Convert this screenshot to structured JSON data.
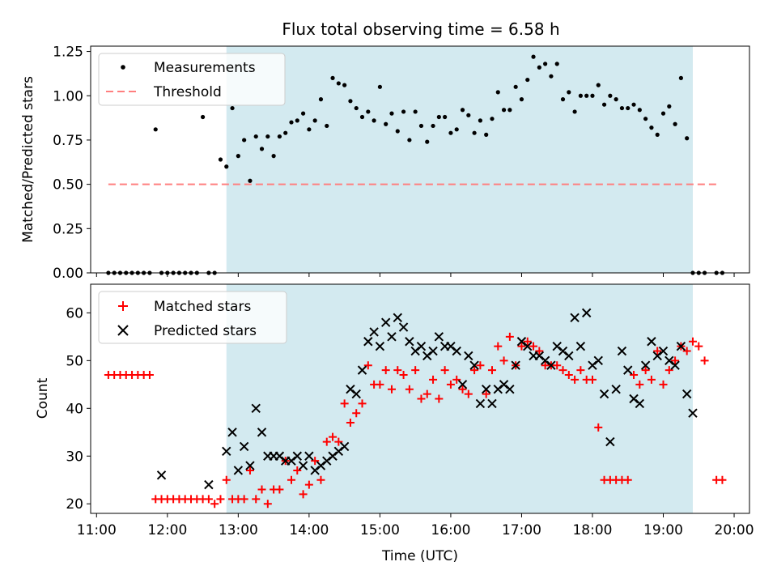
{
  "figure": {
    "title": "Flux total observing time = 6.58 h",
    "xlabel": "Time (UTC)",
    "x_tick_labels": [
      "11:00",
      "12:00",
      "13:00",
      "14:00",
      "15:00",
      "16:00",
      "17:00",
      "18:00",
      "19:00",
      "20:00"
    ],
    "shade_color": "#d3eaf0"
  },
  "chart_data": [
    {
      "type": "scatter",
      "ylabel": "Matched/Predicted stars",
      "ylim": [
        0,
        1.28
      ],
      "xlim": [
        "10:55",
        "20:13"
      ],
      "y_ticks": [
        0,
        0.25,
        0.5,
        0.75,
        1.0,
        1.25
      ],
      "y_tick_labels": [
        "0.00",
        "0.25",
        "0.50",
        "0.75",
        "1.00",
        "1.25"
      ],
      "legend": {
        "position": "top-left",
        "entries": [
          "Measurements",
          "Threshold"
        ]
      },
      "shaded_interval": [
        "12:50",
        "19:25"
      ],
      "threshold": {
        "name": "Threshold",
        "value": 0.5,
        "x_range": [
          "11:10",
          "19:48"
        ],
        "color": "#ff7f7f"
      },
      "series": [
        {
          "name": "Measurements",
          "color": "#000000",
          "x": [
            "11:10",
            "11:15",
            "11:20",
            "11:25",
            "11:30",
            "11:35",
            "11:40",
            "11:45",
            "11:50",
            "11:55",
            "12:00",
            "12:05",
            "12:10",
            "12:15",
            "12:20",
            "12:25",
            "12:30",
            "12:35",
            "12:40",
            "12:45",
            "12:50",
            "12:55",
            "13:00",
            "13:05",
            "13:10",
            "13:15",
            "13:20",
            "13:25",
            "13:30",
            "13:35",
            "13:40",
            "13:45",
            "13:50",
            "13:55",
            "14:00",
            "14:05",
            "14:10",
            "14:15",
            "14:20",
            "14:25",
            "14:30",
            "14:35",
            "14:40",
            "14:45",
            "14:50",
            "14:55",
            "15:00",
            "15:05",
            "15:10",
            "15:15",
            "15:20",
            "15:25",
            "15:30",
            "15:35",
            "15:40",
            "15:45",
            "15:50",
            "15:55",
            "16:00",
            "16:05",
            "16:10",
            "16:15",
            "16:20",
            "16:25",
            "16:30",
            "16:35",
            "16:40",
            "16:45",
            "16:50",
            "16:55",
            "17:00",
            "17:05",
            "17:10",
            "17:15",
            "17:20",
            "17:25",
            "17:30",
            "17:35",
            "17:40",
            "17:45",
            "17:50",
            "17:55",
            "18:00",
            "18:05",
            "18:10",
            "18:15",
            "18:20",
            "18:25",
            "18:30",
            "18:35",
            "18:40",
            "18:45",
            "18:50",
            "18:55",
            "19:00",
            "19:05",
            "19:10",
            "19:15",
            "19:20",
            "19:25",
            "19:30",
            "19:35",
            "19:45",
            "19:50"
          ],
          "values": [
            0,
            0,
            0,
            0,
            0,
            0,
            0,
            0,
            0.81,
            0,
            0,
            0,
            0,
            0,
            0,
            0,
            0.88,
            0,
            0,
            0.64,
            0.6,
            0.93,
            0.66,
            0.75,
            0.52,
            0.77,
            0.7,
            0.77,
            0.66,
            0.77,
            0.79,
            0.85,
            0.86,
            0.9,
            0.81,
            0.86,
            0.98,
            0.83,
            1.1,
            1.07,
            1.06,
            0.97,
            0.93,
            0.88,
            0.91,
            0.86,
            1.05,
            0.84,
            0.9,
            0.8,
            0.91,
            0.75,
            0.91,
            0.83,
            0.74,
            0.83,
            0.88,
            0.88,
            0.79,
            0.81,
            0.92,
            0.89,
            0.79,
            0.86,
            0.78,
            0.87,
            1.02,
            0.92,
            0.92,
            1.05,
            0.98,
            1.09,
            1.22,
            1.16,
            1.18,
            1.11,
            1.18,
            0.98,
            1.02,
            0.91,
            1.0,
            1.0,
            1.0,
            1.06,
            0.95,
            1.0,
            0.98,
            0.93,
            0.93,
            0.95,
            0.92,
            0.87,
            0.82,
            0.78,
            0.9,
            0.94,
            0.84,
            1.1,
            0.76,
            0,
            0,
            0,
            0,
            0
          ]
        }
      ]
    },
    {
      "type": "scatter",
      "ylabel": "Count",
      "ylim": [
        18,
        66
      ],
      "xlim": [
        "10:55",
        "20:13"
      ],
      "y_ticks": [
        20,
        30,
        40,
        50,
        60
      ],
      "y_tick_labels": [
        "20",
        "30",
        "40",
        "50",
        "60"
      ],
      "legend": {
        "position": "top-left",
        "entries": [
          "Matched stars",
          "Predicted stars"
        ]
      },
      "shaded_interval": [
        "12:50",
        "19:25"
      ],
      "series": [
        {
          "name": "Matched stars",
          "marker": "plus",
          "color": "#ff0000",
          "x": [
            "11:10",
            "11:15",
            "11:20",
            "11:25",
            "11:30",
            "11:35",
            "11:40",
            "11:45",
            "11:50",
            "11:55",
            "12:00",
            "12:05",
            "12:10",
            "12:15",
            "12:20",
            "12:25",
            "12:30",
            "12:35",
            "12:40",
            "12:45",
            "12:50",
            "12:55",
            "13:00",
            "13:05",
            "13:10",
            "13:15",
            "13:20",
            "13:25",
            "13:30",
            "13:35",
            "13:40",
            "13:45",
            "13:50",
            "13:55",
            "14:00",
            "14:05",
            "14:10",
            "14:15",
            "14:20",
            "14:25",
            "14:30",
            "14:35",
            "14:40",
            "14:45",
            "14:50",
            "14:55",
            "15:00",
            "15:05",
            "15:10",
            "15:15",
            "15:20",
            "15:25",
            "15:30",
            "15:35",
            "15:40",
            "15:45",
            "15:50",
            "15:55",
            "16:00",
            "16:05",
            "16:10",
            "16:15",
            "16:20",
            "16:25",
            "16:30",
            "16:35",
            "16:40",
            "16:45",
            "16:50",
            "16:55",
            "17:00",
            "17:05",
            "17:10",
            "17:15",
            "17:20",
            "17:25",
            "17:30",
            "17:35",
            "17:40",
            "17:45",
            "17:50",
            "17:55",
            "18:00",
            "18:05",
            "18:10",
            "18:15",
            "18:20",
            "18:25",
            "18:30",
            "18:35",
            "18:40",
            "18:45",
            "18:50",
            "18:55",
            "19:00",
            "19:05",
            "19:10",
            "19:15",
            "19:20",
            "19:25",
            "19:30",
            "19:35",
            "19:45",
            "19:50"
          ],
          "values": [
            47,
            47,
            47,
            47,
            47,
            47,
            47,
            47,
            21,
            21,
            21,
            21,
            21,
            21,
            21,
            21,
            21,
            21,
            20,
            21,
            25,
            21,
            21,
            21,
            27,
            21,
            23,
            20,
            23,
            23,
            29,
            25,
            27,
            22,
            24,
            29,
            25,
            33,
            34,
            33,
            41,
            37,
            39,
            41,
            49,
            45,
            45,
            48,
            44,
            48,
            47,
            44,
            48,
            42,
            43,
            46,
            42,
            48,
            45,
            46,
            44,
            43,
            48,
            49,
            43,
            48,
            53,
            50,
            55,
            49,
            53,
            54,
            53,
            52,
            49,
            49,
            49,
            48,
            47,
            46,
            48,
            46,
            46,
            36,
            25,
            25,
            25,
            25,
            25,
            47,
            45,
            48,
            46,
            52,
            45,
            48,
            50,
            53,
            52,
            54,
            53,
            50,
            25,
            25
          ]
        },
        {
          "name": "Predicted stars",
          "marker": "x",
          "color": "#000000",
          "x": [
            "11:55",
            "12:35",
            "12:50",
            "12:55",
            "13:00",
            "13:05",
            "13:10",
            "13:15",
            "13:20",
            "13:25",
            "13:30",
            "13:35",
            "13:40",
            "13:45",
            "13:50",
            "13:55",
            "14:00",
            "14:05",
            "14:10",
            "14:15",
            "14:20",
            "14:25",
            "14:30",
            "14:35",
            "14:40",
            "14:45",
            "14:50",
            "14:55",
            "15:00",
            "15:05",
            "15:10",
            "15:15",
            "15:20",
            "15:25",
            "15:30",
            "15:35",
            "15:40",
            "15:45",
            "15:50",
            "15:55",
            "16:00",
            "16:05",
            "16:10",
            "16:15",
            "16:20",
            "16:25",
            "16:30",
            "16:35",
            "16:40",
            "16:45",
            "16:50",
            "16:55",
            "17:00",
            "17:05",
            "17:10",
            "17:15",
            "17:20",
            "17:25",
            "17:30",
            "17:35",
            "17:40",
            "17:45",
            "17:50",
            "17:55",
            "18:00",
            "18:05",
            "18:10",
            "18:15",
            "18:20",
            "18:25",
            "18:30",
            "18:35",
            "18:40",
            "18:45",
            "18:50",
            "18:55",
            "19:00",
            "19:05",
            "19:10",
            "19:15",
            "19:20",
            "19:25"
          ],
          "values": [
            26,
            24,
            31,
            35,
            27,
            32,
            28,
            40,
            35,
            30,
            30,
            30,
            29,
            29,
            30,
            28,
            30,
            27,
            28,
            29,
            30,
            31,
            32,
            44,
            43,
            48,
            54,
            56,
            53,
            58,
            55,
            59,
            57,
            54,
            52,
            53,
            51,
            52,
            55,
            53,
            53,
            52,
            45,
            51,
            49,
            41,
            44,
            41,
            44,
            45,
            44,
            49,
            54,
            53,
            51,
            51,
            50,
            49,
            53,
            52,
            51,
            59,
            53,
            60,
            49,
            50,
            43,
            33,
            44,
            52,
            48,
            42,
            41,
            49,
            54,
            51,
            52,
            50,
            49,
            53,
            43,
            39
          ]
        }
      ]
    }
  ]
}
